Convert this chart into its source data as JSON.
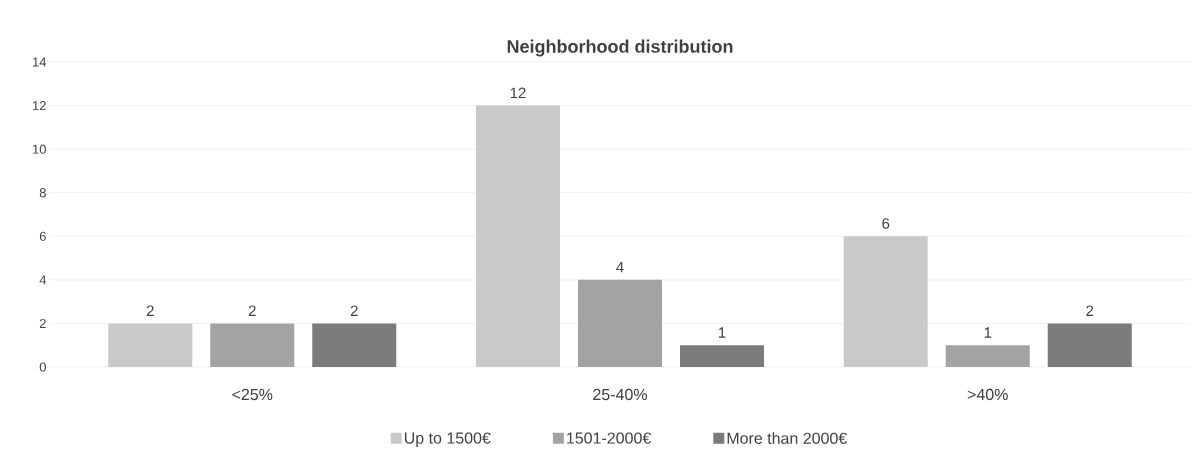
{
  "chart_data": {
    "type": "bar",
    "title": "Neighborhood distribution",
    "categories": [
      "<25%",
      "25-40%",
      ">40%"
    ],
    "series": [
      {
        "name": "Up to 1500€",
        "color": "#c9c9c9",
        "values": [
          2,
          12,
          6
        ]
      },
      {
        "name": "1501-2000€",
        "color": "#a3a3a3",
        "values": [
          2,
          4,
          1
        ]
      },
      {
        "name": "More than 2000€",
        "color": "#7b7b7b",
        "values": [
          2,
          1,
          2
        ]
      }
    ],
    "ylim": [
      0,
      14
    ],
    "yticks": [
      0,
      2,
      4,
      6,
      8,
      10,
      12,
      14
    ],
    "grid": "y",
    "legend": "bottom",
    "data_labels": true
  }
}
